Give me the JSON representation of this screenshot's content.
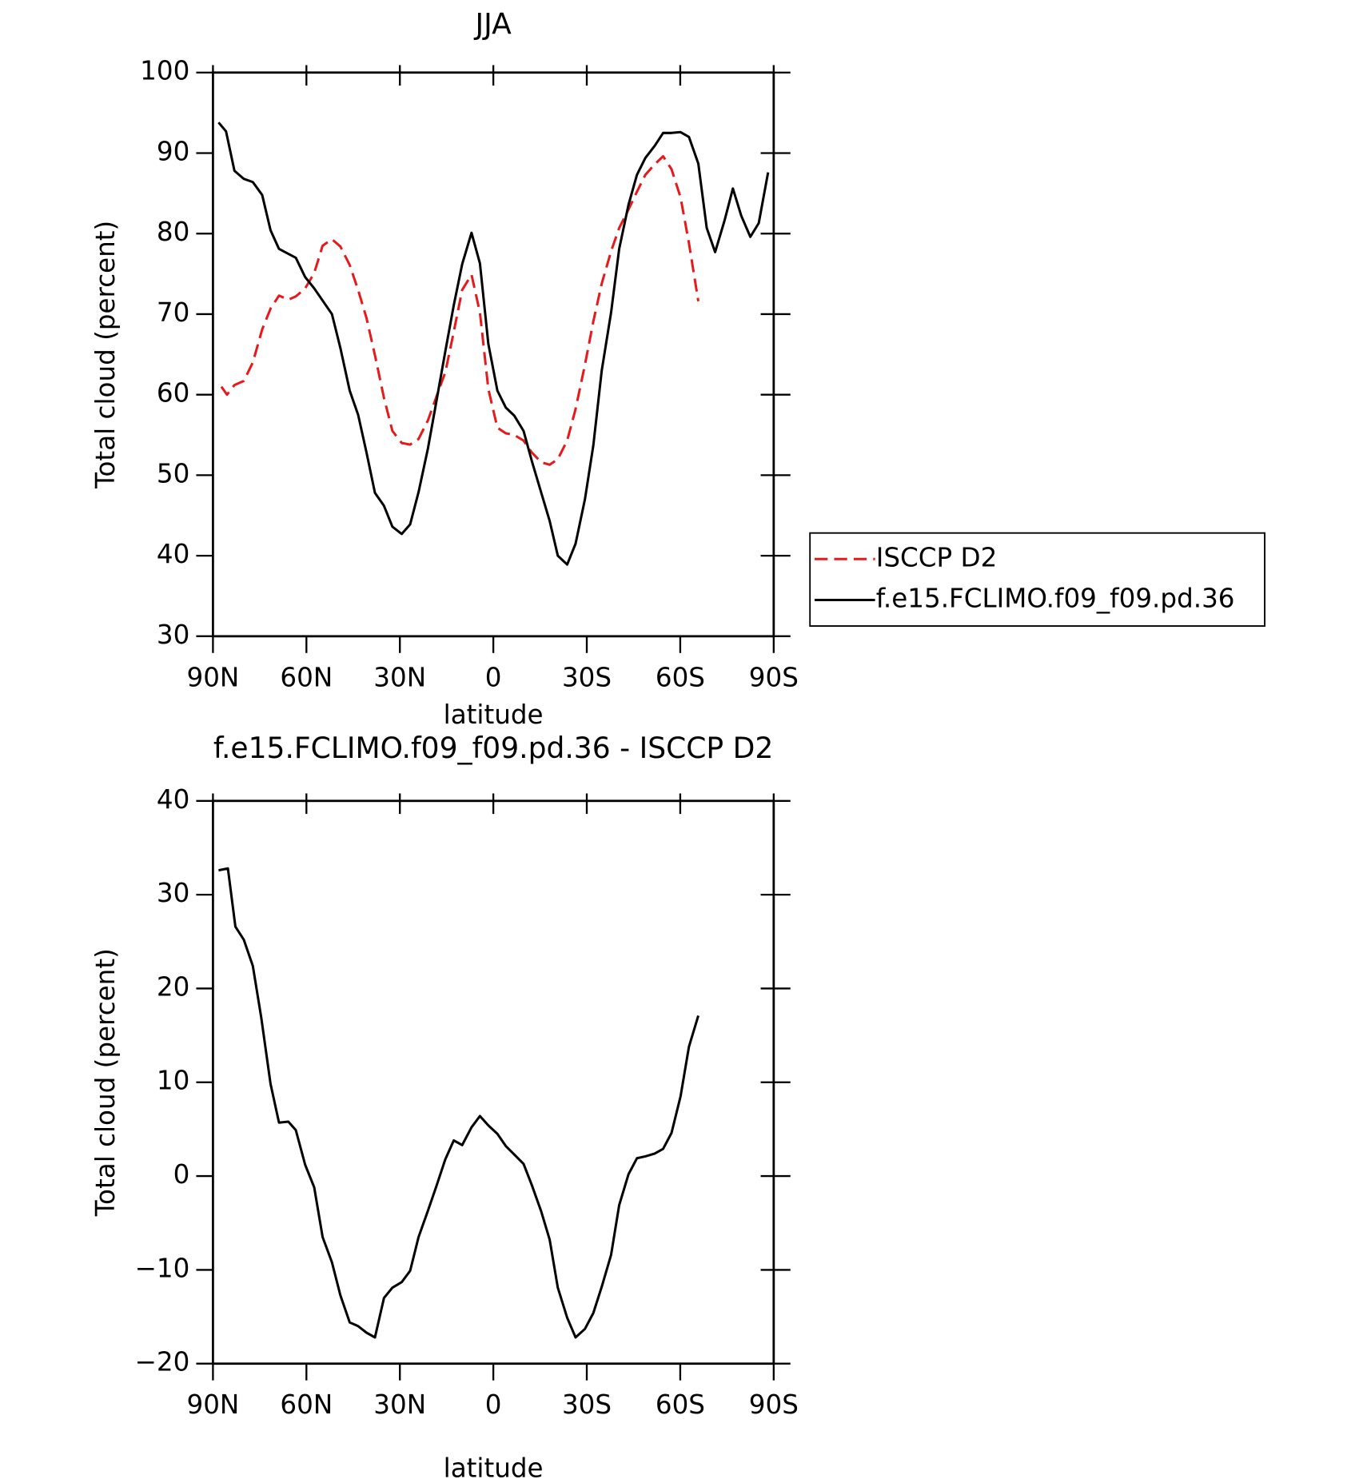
{
  "chart_data": [
    {
      "type": "line",
      "title": "JJA",
      "xlabel": "latitude",
      "ylabel": "Total cloud (percent)",
      "xlim": [
        90,
        -90
      ],
      "xticks": [
        {
          "value": 90,
          "label": "90N"
        },
        {
          "value": 60,
          "label": "60N"
        },
        {
          "value": 30,
          "label": "30N"
        },
        0,
        {
          "value": -30,
          "label": "30S"
        },
        {
          "value": -60,
          "label": "60S"
        },
        {
          "value": -90,
          "label": "90S"
        }
      ],
      "ylim": [
        30,
        100
      ],
      "yticks": [
        30,
        40,
        50,
        60,
        70,
        80,
        90,
        100
      ],
      "legend": "right",
      "series": [
        {
          "name": "ISCCP D2",
          "color": "#e41a1c",
          "linestyle": "dashed",
          "x": [
            87.3,
            85.5,
            83.1,
            80.1,
            77.2,
            74.2,
            71.5,
            68.8,
            65.8,
            63.4,
            60.4,
            57.5,
            54.8,
            51.8,
            49.1,
            46.1,
            43.4,
            40.7,
            38.0,
            35.1,
            32.4,
            29.4,
            26.7,
            24.0,
            21.0,
            18.4,
            15.4,
            12.7,
            10.0,
            7.0,
            4.3,
            1.6,
            -1.3,
            -4.0,
            -6.7,
            -9.7,
            -12.4,
            -15.4,
            -18.1,
            -20.7,
            -23.7,
            -26.4,
            -29.4,
            -32.1,
            -34.8,
            -37.8,
            -40.4,
            -43.4,
            -46.1,
            -48.8,
            -51.8,
            -54.5,
            -57.2,
            -60.1,
            -62.8,
            -65.8
          ],
          "values": [
            61.0,
            60.0,
            61.2,
            61.7,
            64.0,
            68.1,
            70.7,
            72.3,
            71.8,
            72.2,
            73.2,
            75.1,
            78.5,
            79.3,
            78.4,
            76.1,
            73.0,
            69.5,
            64.9,
            59.6,
            55.5,
            54.0,
            53.8,
            54.5,
            56.8,
            59.6,
            62.8,
            67.8,
            73.0,
            74.9,
            70.2,
            60.7,
            55.9,
            55.2,
            55.0,
            54.3,
            52.8,
            51.6,
            51.3,
            52.0,
            54.3,
            58.2,
            63.7,
            69.1,
            73.8,
            77.8,
            80.7,
            83.0,
            85.2,
            87.3,
            88.6,
            89.6,
            88.0,
            84.5,
            78.8,
            71.6
          ]
        },
        {
          "name": "f.e15.FCLIMO.f09_f09.pd.36",
          "color": "#000000",
          "linestyle": "solid",
          "x": [
            88.2,
            85.8,
            83.1,
            80.1,
            77.2,
            74.2,
            71.5,
            68.8,
            63.4,
            60.4,
            57.5,
            51.8,
            49.1,
            46.1,
            43.4,
            40.7,
            38.0,
            35.1,
            32.4,
            29.4,
            26.7,
            24.0,
            21.0,
            18.4,
            15.4,
            12.7,
            10.0,
            7.0,
            4.3,
            1.6,
            -1.3,
            -4.0,
            -6.7,
            -9.7,
            -12.4,
            -15.4,
            -18.1,
            -20.7,
            -23.7,
            -26.4,
            -29.4,
            -32.1,
            -34.8,
            -37.8,
            -40.4,
            -43.4,
            -46.1,
            -48.8,
            -51.8,
            -54.5,
            -57.2,
            -60.1,
            -62.8,
            -65.8,
            -68.5,
            -71.2,
            -74.2,
            -76.9,
            -79.6,
            -82.5,
            -85.2,
            -88.2
          ],
          "values": [
            93.8,
            92.7,
            87.8,
            86.8,
            86.4,
            84.8,
            80.4,
            78.1,
            77.0,
            74.6,
            73.2,
            70.0,
            65.8,
            60.5,
            57.5,
            52.8,
            47.8,
            46.2,
            43.6,
            42.7,
            43.9,
            47.9,
            53.3,
            58.9,
            65.4,
            71.1,
            76.2,
            80.1,
            76.3,
            66.3,
            60.5,
            58.4,
            57.4,
            55.5,
            51.7,
            47.8,
            44.3,
            40.0,
            38.9,
            41.5,
            47.0,
            53.7,
            63.0,
            70.2,
            78.1,
            83.6,
            87.3,
            89.4,
            90.9,
            92.5,
            92.5,
            92.6,
            92.0,
            88.7,
            80.7,
            77.7,
            81.6,
            85.6,
            82.2,
            79.6,
            81.3,
            87.6
          ]
        }
      ]
    },
    {
      "type": "line",
      "title": "f.e15.FCLIMO.f09_f09.pd.36 - ISCCP D2",
      "xlabel": "latitude",
      "ylabel": "Total cloud (percent)",
      "xlim": [
        90,
        -90
      ],
      "xticks": [
        {
          "value": 90,
          "label": "90N"
        },
        {
          "value": 60,
          "label": "60N"
        },
        {
          "value": 30,
          "label": "30N"
        },
        0,
        {
          "value": -30,
          "label": "30S"
        },
        {
          "value": -60,
          "label": "60S"
        },
        {
          "value": -90,
          "label": "90S"
        }
      ],
      "ylim": [
        -20,
        40
      ],
      "yticks": [
        {
          "value": -20,
          "label": "−20"
        },
        {
          "value": -10,
          "label": "−10"
        },
        0,
        10,
        20,
        30,
        40
      ],
      "series": [
        {
          "color": "#000000",
          "linestyle": "solid",
          "x": [
            88.2,
            85.2,
            82.8,
            80.1,
            77.2,
            74.5,
            71.5,
            68.8,
            65.8,
            63.4,
            60.4,
            57.5,
            54.8,
            51.8,
            49.1,
            46.1,
            43.4,
            40.7,
            38.0,
            35.1,
            32.4,
            29.4,
            26.7,
            24.0,
            21.0,
            18.4,
            15.4,
            12.7,
            10.0,
            7.0,
            4.3,
            1.6,
            -1.3,
            -4.0,
            -6.7,
            -9.7,
            -12.4,
            -15.4,
            -18.1,
            -20.7,
            -23.7,
            -26.4,
            -29.4,
            -32.1,
            -34.8,
            -37.8,
            -40.4,
            -43.4,
            -46.1,
            -48.8,
            -51.8,
            -54.5,
            -57.2,
            -60.1,
            -62.8,
            -65.8
          ],
          "values": [
            32.6,
            32.8,
            26.6,
            25.2,
            22.4,
            16.9,
            9.8,
            5.7,
            5.8,
            4.9,
            1.2,
            -1.2,
            -6.5,
            -9.2,
            -12.7,
            -15.6,
            -16.0,
            -16.7,
            -17.2,
            -13.0,
            -11.9,
            -11.3,
            -10.1,
            -6.5,
            -3.7,
            -1.2,
            1.8,
            3.8,
            3.3,
            5.2,
            6.4,
            5.4,
            4.5,
            3.2,
            2.3,
            1.3,
            -1.0,
            -3.8,
            -6.8,
            -11.9,
            -15.1,
            -17.2,
            -16.3,
            -14.6,
            -11.8,
            -8.4,
            -3.1,
            0.2,
            1.9,
            2.1,
            2.4,
            2.9,
            4.6,
            8.5,
            13.8,
            17.1
          ]
        }
      ]
    }
  ]
}
